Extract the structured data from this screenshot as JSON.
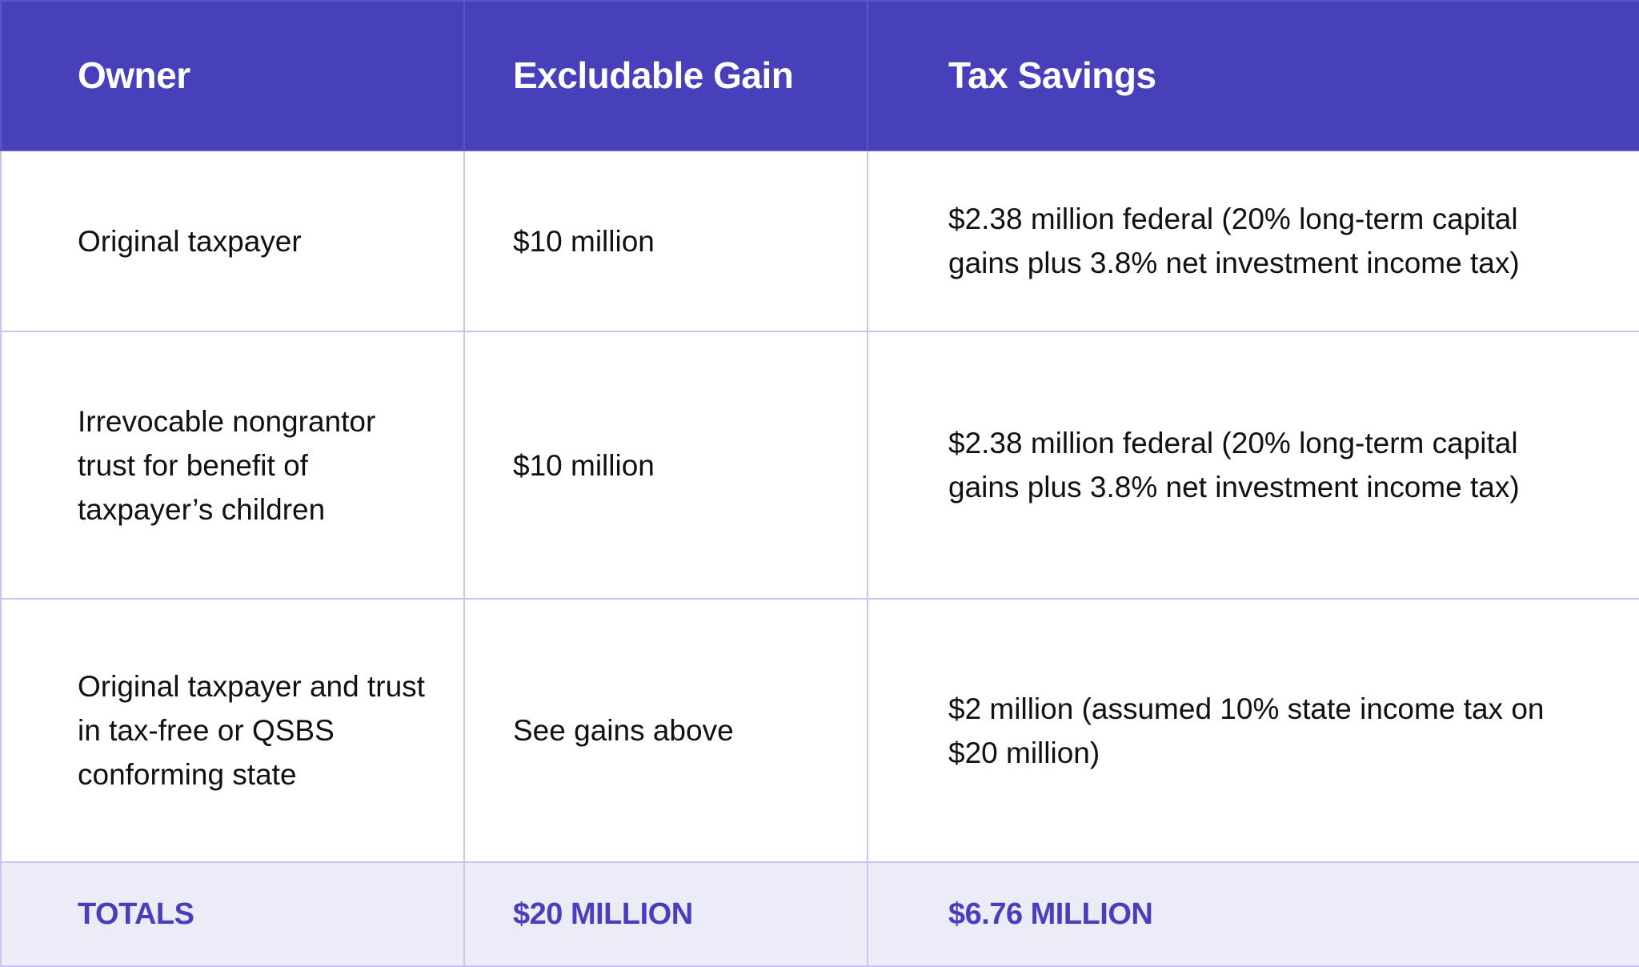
{
  "colors": {
    "header_bg": "#4840bb",
    "totals_bg": "#ecebf8",
    "border": "#c8c4f4",
    "accent_text": "#4840bb"
  },
  "headers": [
    "Owner",
    "Excludable Gain",
    "Tax Savings"
  ],
  "rows": [
    {
      "owner": "Original taxpayer",
      "gain": "$10 million",
      "savings": "$2.38 million federal (20% long-term capital gains plus 3.8% net investment income tax)"
    },
    {
      "owner": "Irrevocable nongrantor trust for benefit of taxpayer’s children",
      "gain": "$10 million",
      "savings": "$2.38 million federal (20% long-term capital gains plus 3.8% net investment income tax)"
    },
    {
      "owner": "Original taxpayer and trust in tax-free or QSBS conforming state",
      "gain": "See gains above",
      "savings": "$2 million (assumed 10% state income tax on $20 million)"
    }
  ],
  "totals": {
    "label": "TOTALS",
    "gain": "$20 MILLION",
    "savings": "$6.76 MILLION"
  }
}
